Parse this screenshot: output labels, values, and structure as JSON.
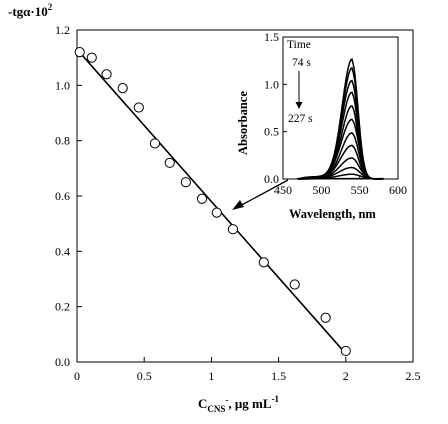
{
  "chart_data": [
    {
      "type": "scatter",
      "title": "",
      "ylabel": "-tgα·10²",
      "xlabel": {
        "main": "C",
        "subscript": "CNS",
        "superscript": "-",
        "units": ", μg mL",
        "units_exponent": "-1"
      },
      "xlim": [
        0,
        2.5
      ],
      "ylim": [
        0,
        1.2
      ],
      "xticks": [
        "0",
        "0.5",
        "1",
        "1.5",
        "2",
        "2.5"
      ],
      "yticks": [
        "0.0",
        "0.2",
        "0.4",
        "0.6",
        "0.8",
        "1.0",
        "1.2"
      ],
      "grid": false,
      "series": [
        {
          "marker": "open-circle",
          "points": [
            [
              0.02,
              1.12
            ],
            [
              0.11,
              1.1
            ],
            [
              0.22,
              1.04
            ],
            [
              0.34,
              0.99
            ],
            [
              0.46,
              0.92
            ],
            [
              0.58,
              0.79
            ],
            [
              0.69,
              0.72
            ],
            [
              0.81,
              0.65
            ],
            [
              0.93,
              0.59
            ],
            [
              1.04,
              0.54
            ],
            [
              1.16,
              0.48
            ],
            [
              1.39,
              0.36
            ],
            [
              1.62,
              0.28
            ],
            [
              1.85,
              0.16
            ],
            [
              2.0,
              0.04
            ]
          ]
        }
      ],
      "fit_line": {
        "x": [
          0.0,
          2.0
        ],
        "y": [
          1.13,
          0.03
        ]
      }
    },
    {
      "type": "line",
      "title": "",
      "xlabel": "Wavelength, nm",
      "ylabel": "Absorbance",
      "xlim": [
        450,
        600
      ],
      "ylim": [
        0,
        1.5
      ],
      "xticks": [
        "450",
        "500",
        "550",
        "600"
      ],
      "yticks": [
        "0.0",
        "0.5",
        "1.0",
        "1.5"
      ],
      "annotation": {
        "label": "Time",
        "start": "74 s",
        "end": "227 s",
        "direction": "down"
      },
      "peak_nm": 540,
      "curves": [
        {
          "peak": 1.24,
          "sat": 0.42,
          "w1": 18,
          "w2": 11
        },
        {
          "peak": 1.15,
          "sat": 0.4,
          "w1": 18,
          "w2": 11
        },
        {
          "peak": 1.02,
          "sat": 0.38,
          "w1": 19,
          "w2": 11
        },
        {
          "peak": 0.9,
          "sat": 0.36,
          "w1": 19,
          "w2": 11
        },
        {
          "peak": 0.76,
          "sat": 0.34,
          "w1": 19,
          "w2": 11
        },
        {
          "peak": 0.62,
          "sat": 0.32,
          "w1": 20,
          "w2": 12
        },
        {
          "peak": 0.48,
          "sat": 0.3,
          "w1": 20,
          "w2": 12
        },
        {
          "peak": 0.35,
          "sat": 0.28,
          "w1": 21,
          "w2": 12
        },
        {
          "peak": 0.22,
          "sat": 0.24,
          "w1": 22,
          "w2": 13
        },
        {
          "peak": 0.12,
          "sat": 0.22,
          "w1": 24,
          "w2": 14
        },
        {
          "peak": 0.05,
          "sat": 0.2,
          "w1": 26,
          "w2": 16
        }
      ]
    }
  ]
}
